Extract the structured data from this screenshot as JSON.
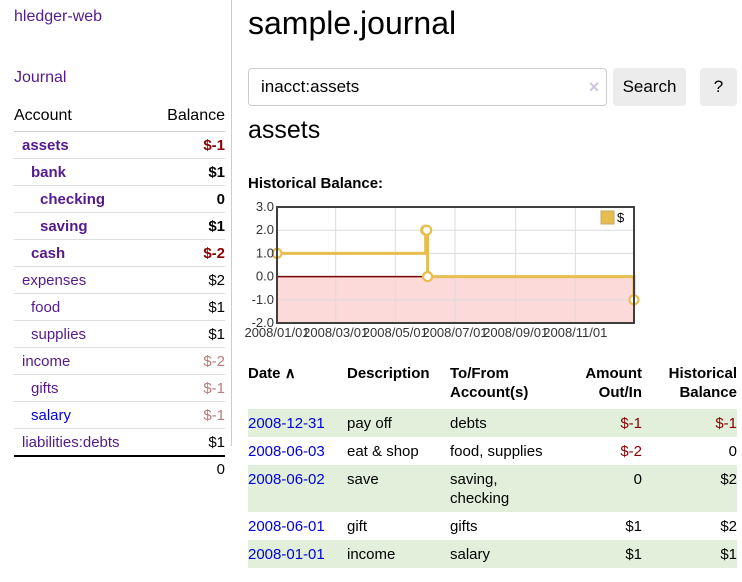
{
  "app": {
    "brand": "hledger-web",
    "nav_journal": "Journal"
  },
  "sidebar": {
    "headers": {
      "account": "Account",
      "balance": "Balance"
    },
    "accounts": [
      {
        "name": "assets",
        "depth": 1,
        "bold": true,
        "link_style": "visited",
        "balance": "$-1",
        "balance_style": "neg"
      },
      {
        "name": "bank",
        "depth": 2,
        "bold": true,
        "link_style": "visited",
        "balance": "$1",
        "balance_style": ""
      },
      {
        "name": "checking",
        "depth": 3,
        "bold": true,
        "link_style": "visited",
        "balance": "0",
        "balance_style": ""
      },
      {
        "name": "saving",
        "depth": 3,
        "bold": true,
        "link_style": "visited",
        "balance": "$1",
        "balance_style": ""
      },
      {
        "name": "cash",
        "depth": 2,
        "bold": true,
        "link_style": "visited",
        "balance": "$-2",
        "balance_style": "neg"
      },
      {
        "name": "expenses",
        "depth": 1,
        "bold": false,
        "link_style": "visited",
        "balance": "$2",
        "balance_style": ""
      },
      {
        "name": "food",
        "depth": 2,
        "bold": false,
        "link_style": "visited",
        "balance": "$1",
        "balance_style": ""
      },
      {
        "name": "supplies",
        "depth": 2,
        "bold": false,
        "link_style": "visited",
        "balance": "$1",
        "balance_style": ""
      },
      {
        "name": "income",
        "depth": 1,
        "bold": false,
        "link_style": "visited",
        "balance": "$-2",
        "balance_style": "soft"
      },
      {
        "name": "gifts",
        "depth": 2,
        "bold": false,
        "link_style": "visited",
        "balance": "$-1",
        "balance_style": "soft"
      },
      {
        "name": "salary",
        "depth": 2,
        "bold": false,
        "link_style": "unvisited",
        "balance": "$-1",
        "balance_style": "soft"
      },
      {
        "name": "liabilities:debts",
        "depth": 1,
        "bold": false,
        "link_style": "visited",
        "balance": "$1",
        "balance_style": ""
      }
    ],
    "total": "0"
  },
  "header": {
    "title": "sample.journal"
  },
  "search": {
    "value": "inacct:assets",
    "clear_icon": "×",
    "button": "Search",
    "help_button": "?"
  },
  "account_page": {
    "heading": "assets",
    "chart_label": "Historical Balance:"
  },
  "chart_data": {
    "type": "line",
    "step": true,
    "title": "Historical Balance",
    "series": [
      {
        "name": "$",
        "points": [
          [
            "2008-01-01",
            1
          ],
          [
            "2008-06-01",
            2
          ],
          [
            "2008-06-02",
            2
          ],
          [
            "2008-06-03",
            0
          ],
          [
            "2008-12-31",
            -1
          ]
        ]
      }
    ],
    "xlim": [
      "2008-01-01",
      "2008-12-31"
    ],
    "ylim": [
      -2,
      3
    ],
    "y_ticks": [
      {
        "v": 3,
        "label": "3.0"
      },
      {
        "v": 2,
        "label": "2.0"
      },
      {
        "v": 1,
        "label": "1.0"
      },
      {
        "v": 0,
        "label": "0.0"
      },
      {
        "v": -1,
        "label": "-1.0"
      },
      {
        "v": -2,
        "label": "-2.0"
      }
    ],
    "x_ticks": [
      {
        "date": "2008-01-01",
        "label": "2008/01/01"
      },
      {
        "date": "2008-03-01",
        "label": "2008/03/01"
      },
      {
        "date": "2008-05-01",
        "label": "2008/05/01"
      },
      {
        "date": "2008-07-01",
        "label": "2008/07/01"
      },
      {
        "date": "2008-09-01",
        "label": "2008/09/01"
      },
      {
        "date": "2008-11-01",
        "label": "2008/11/01"
      }
    ],
    "legend": {
      "label": "$",
      "position": "top-right"
    },
    "grid": true,
    "colors": {
      "line": "#e7bd4e",
      "marker_fill": "#ffffff",
      "negative_fill": "#fcdada",
      "zero_line": "#7a0000",
      "grid": "#dcdcdc",
      "border": "#3f3f3f",
      "tick_text": "#333333"
    }
  },
  "register": {
    "headers": {
      "date": "Date",
      "sort_icon": "∧",
      "description": "Description",
      "accounts": "To/From Account(s)",
      "amount": "Amount Out/In",
      "balance": "Historical Balance"
    },
    "rows": [
      {
        "date": "2008-12-31",
        "description": "pay off",
        "accounts": "debts",
        "amount": "$-1",
        "amount_negative": true,
        "balance": "$-1",
        "balance_negative": true
      },
      {
        "date": "2008-06-03",
        "description": "eat & shop",
        "accounts": "food, supplies",
        "amount": "$-2",
        "amount_negative": true,
        "balance": "0",
        "balance_negative": false
      },
      {
        "date": "2008-06-02",
        "description": "save",
        "accounts": "saving, checking",
        "amount": "0",
        "amount_negative": false,
        "balance": "$2",
        "balance_negative": false
      },
      {
        "date": "2008-06-01",
        "description": "gift",
        "accounts": "gifts",
        "amount": "$1",
        "amount_negative": false,
        "balance": "$2",
        "balance_negative": false
      },
      {
        "date": "2008-01-01",
        "description": "income",
        "accounts": "salary",
        "amount": "$1",
        "amount_negative": false,
        "balance": "$1",
        "balance_negative": false
      }
    ]
  }
}
